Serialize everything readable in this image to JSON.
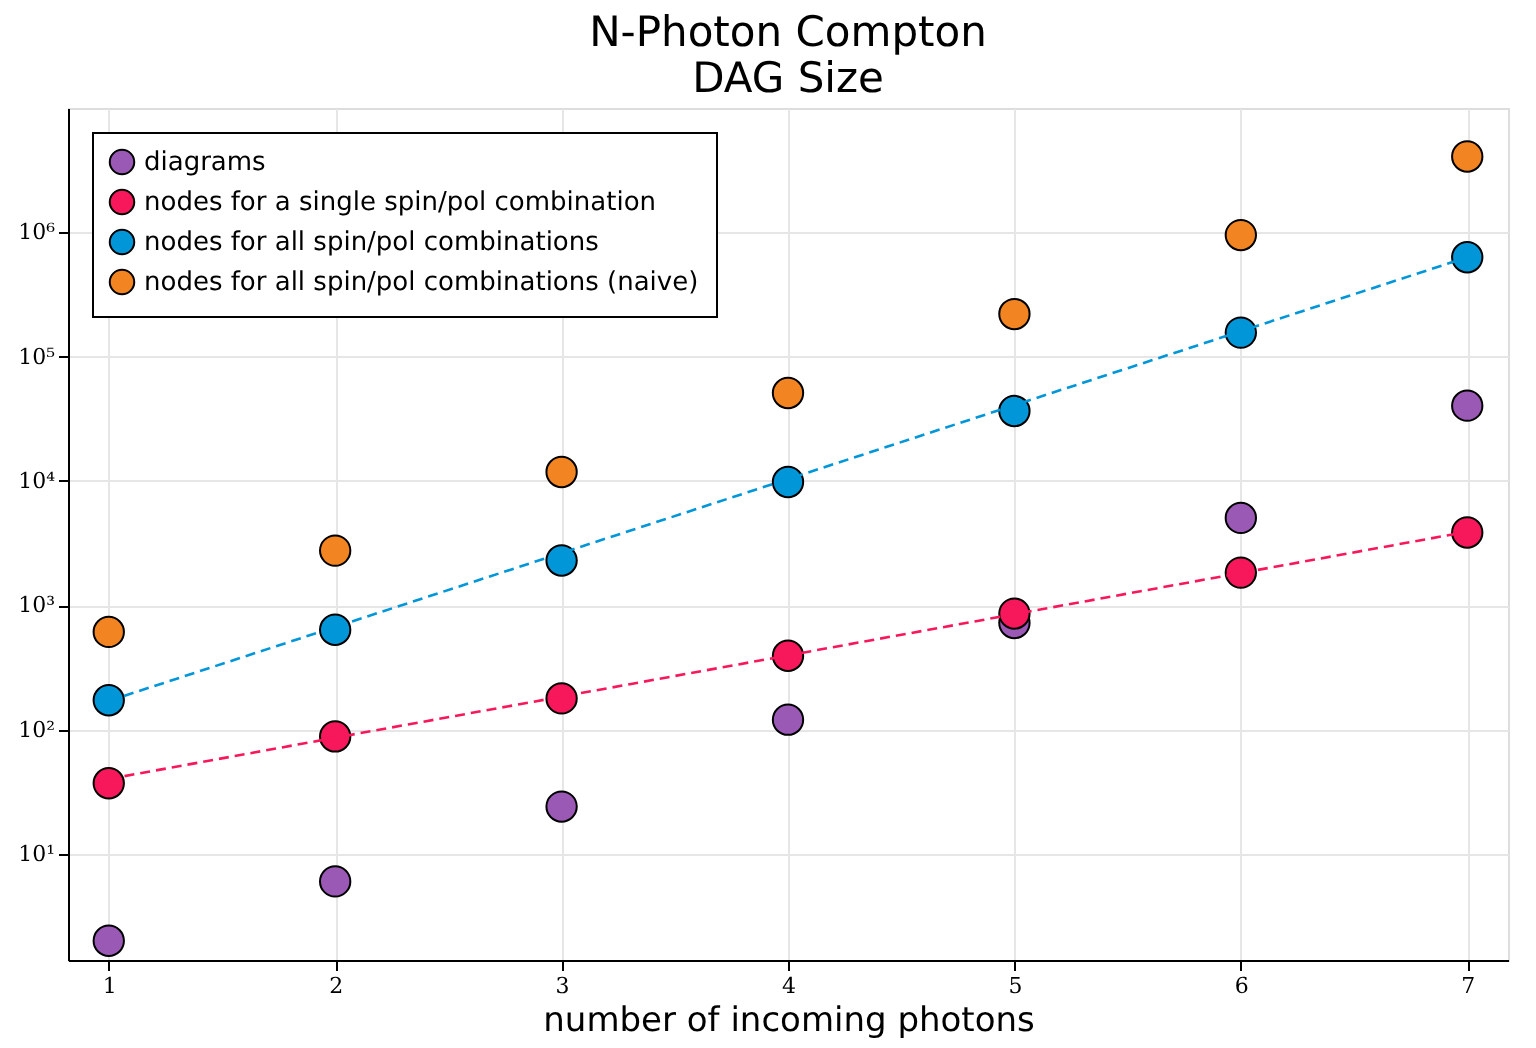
{
  "chart_data": {
    "type": "scatter",
    "title": "N-Photon Compton\nDAG Size",
    "xlabel": "number of incoming photons",
    "x": [
      1,
      2,
      3,
      4,
      5,
      6,
      7
    ],
    "series": [
      {
        "name": "diagrams",
        "color": "#9b59b6",
        "values": [
          2,
          6,
          24,
          120,
          720,
          5040,
          40320
        ]
      },
      {
        "name": "nodes for a single spin/pol combination",
        "color": "#f7175b",
        "values": [
          37,
          88,
          178,
          392,
          857,
          1830,
          3850
        ]
      },
      {
        "name": "nodes for all spin/pol combinations",
        "color": "#0096d8",
        "values": [
          172,
          635,
          2290,
          9800,
          36500,
          156000,
          630000
        ]
      },
      {
        "name": "nodes for all spin/pol combinations (naive)",
        "color": "#f28522",
        "values": [
          610,
          2750,
          11800,
          51000,
          220000,
          950000,
          4070000
        ]
      },
      {
        "type": "line",
        "color": "#0096d8",
        "line_style": "dashed",
        "marker": "none",
        "values": [
          170,
          669,
          2630,
          10350,
          40700,
          160000,
          630000
        ]
      },
      {
        "type": "line",
        "color": "#f7175b",
        "line_style": "dashed",
        "marker": "none",
        "values": [
          40,
          86,
          184,
          395,
          847,
          1817,
          3900
        ]
      }
    ],
    "log": "y",
    "xlim": [
      0.82,
      7.18
    ],
    "ylim": [
      1.4,
      10000000
    ],
    "xticks": [
      1,
      2,
      3,
      4,
      5,
      6,
      7
    ],
    "yticks": [
      {
        "value": 10,
        "label": "10¹"
      },
      {
        "value": 100,
        "label": "10²"
      },
      {
        "value": 1000,
        "label": "10³"
      },
      {
        "value": 10000,
        "label": "10⁴"
      },
      {
        "value": 100000,
        "label": "10⁵"
      },
      {
        "value": 1000000,
        "label": "10⁶"
      }
    ],
    "grid": true,
    "legend": "top left",
    "marker": "circle"
  }
}
